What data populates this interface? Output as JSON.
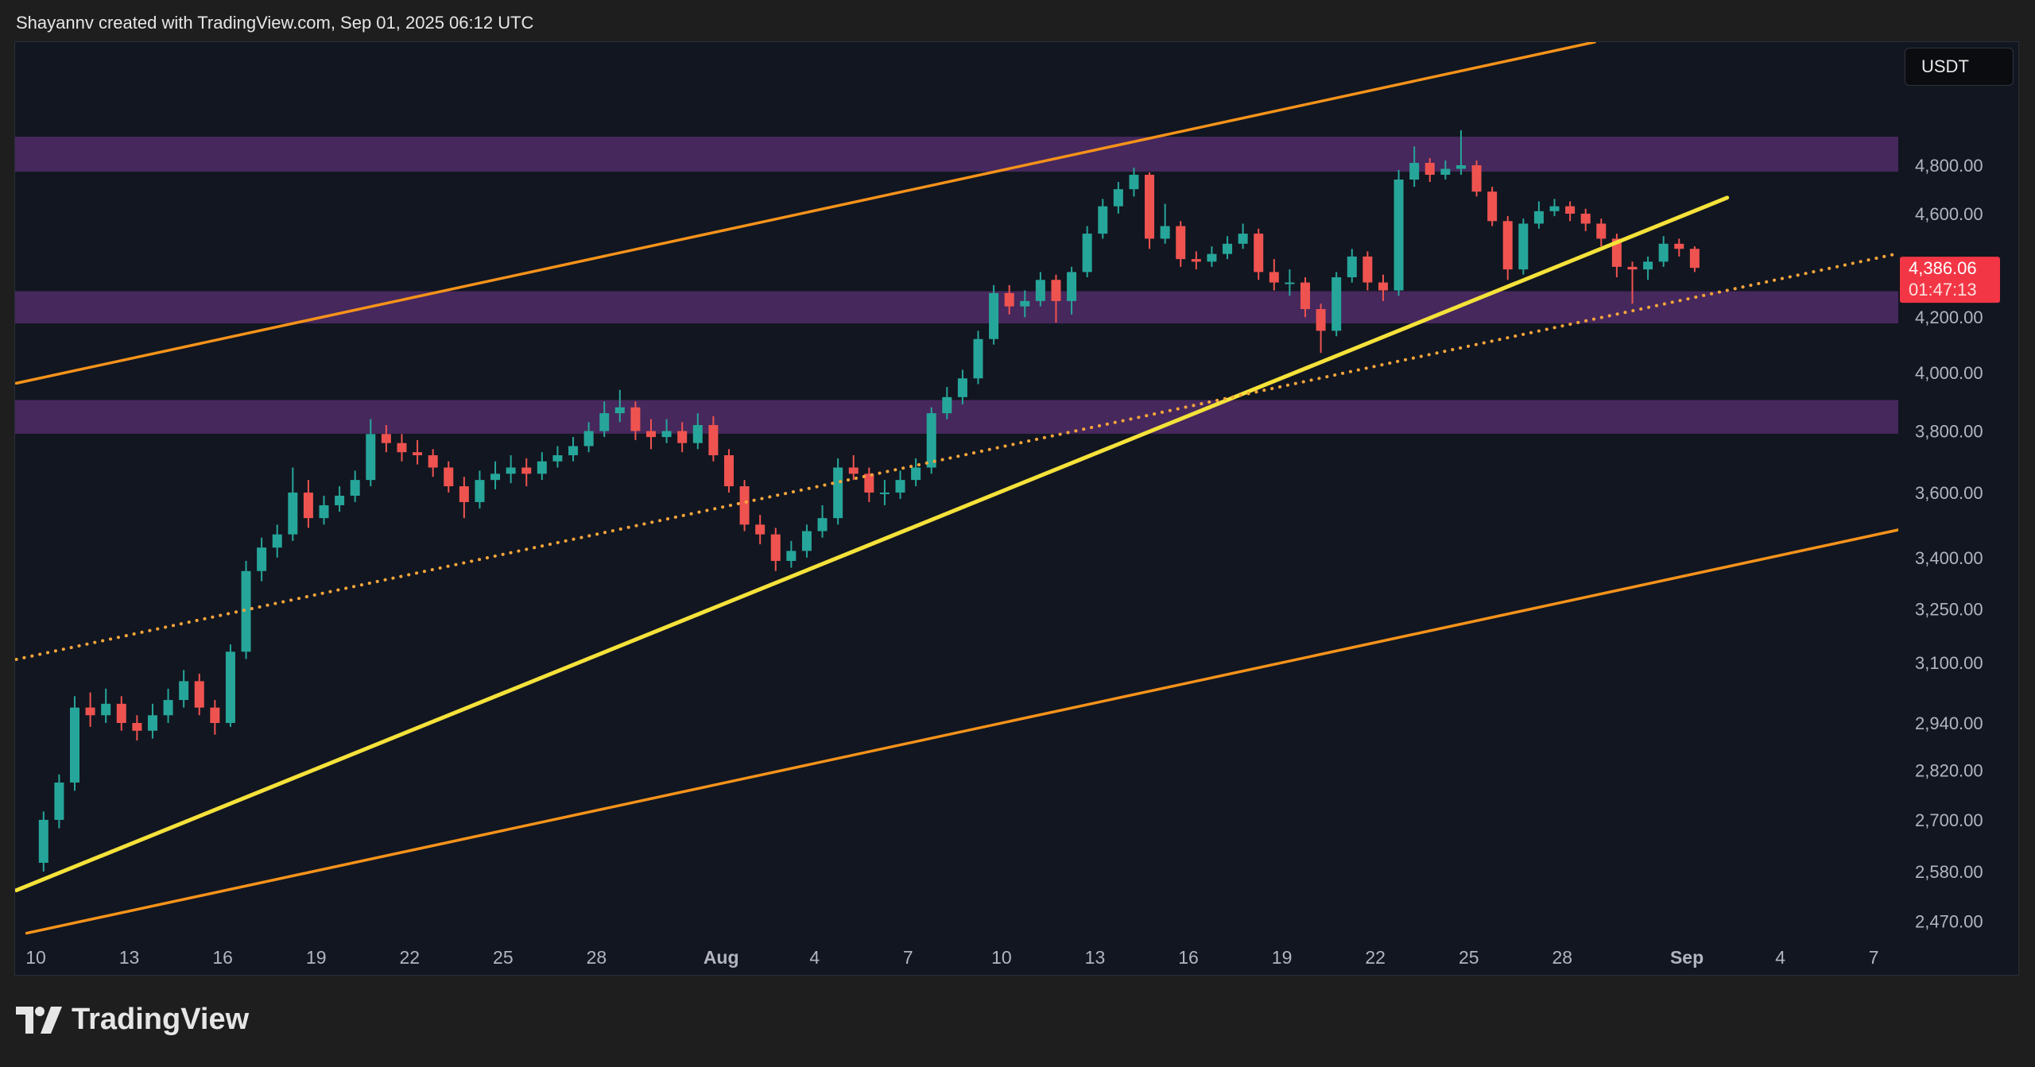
{
  "header": {
    "text": "Shayannv created with TradingView.com, Sep 01, 2025 06:12 UTC"
  },
  "currency_button": {
    "label": "USDT"
  },
  "logo": {
    "text": "TradingView"
  },
  "colors": {
    "up": "#26a69a",
    "down": "#ef5350",
    "zone": "#4b2a62",
    "channel": "#f7931a",
    "trend": "#f5e23a",
    "midline": "#f7a53a",
    "last_price_bg": "#f23645"
  },
  "chart_data": {
    "type": "candlestick",
    "y_scale": "log",
    "ylim": [
      2420,
      5400
    ],
    "xlim": [
      "2025-07-09T09",
      "2025-09-08T12"
    ],
    "grid": false,
    "y_ticks": [
      4800,
      4600,
      4200,
      4000,
      3800,
      3600,
      3400,
      3250,
      3100,
      2940,
      2820,
      2700,
      2580,
      2470
    ],
    "y_tick_labels": [
      "4,800.00",
      "4,600.00",
      "4,200.00",
      "4,000.00",
      "3,800.00",
      "3,600.00",
      "3,400.00",
      "3,250.00",
      "3,100.00",
      "2,940.00",
      "2,820.00",
      "2,700.00",
      "2,580.00",
      "2,470.00"
    ],
    "x_ticks": [
      {
        "date": "2025-07-10",
        "label": "10"
      },
      {
        "date": "2025-07-13",
        "label": "13"
      },
      {
        "date": "2025-07-16",
        "label": "16"
      },
      {
        "date": "2025-07-19",
        "label": "19"
      },
      {
        "date": "2025-07-22",
        "label": "22"
      },
      {
        "date": "2025-07-25",
        "label": "25"
      },
      {
        "date": "2025-07-28",
        "label": "28"
      },
      {
        "date": "2025-08-01",
        "label": "Aug",
        "bold": true
      },
      {
        "date": "2025-08-04",
        "label": "4"
      },
      {
        "date": "2025-08-07",
        "label": "7"
      },
      {
        "date": "2025-08-10",
        "label": "10"
      },
      {
        "date": "2025-08-13",
        "label": "13"
      },
      {
        "date": "2025-08-16",
        "label": "16"
      },
      {
        "date": "2025-08-19",
        "label": "19"
      },
      {
        "date": "2025-08-22",
        "label": "22"
      },
      {
        "date": "2025-08-25",
        "label": "25"
      },
      {
        "date": "2025-08-28",
        "label": "28"
      },
      {
        "date": "2025-09-01",
        "label": "Sep",
        "bold": true
      },
      {
        "date": "2025-09-04",
        "label": "4"
      },
      {
        "date": "2025-09-07",
        "label": "7"
      }
    ],
    "last_price": {
      "value": 4386.06,
      "label": "4,386.06",
      "countdown": "01:47:13"
    },
    "zones": [
      {
        "from": 4773,
        "to": 4922
      },
      {
        "from": 4177,
        "to": 4297
      },
      {
        "from": 3791,
        "to": 3905
      }
    ],
    "lines": [
      {
        "kind": "channel-upper",
        "style": "solid",
        "start": [
          "2025-07-09T09",
          3963
        ],
        "end": [
          "2025-08-29T01",
          5349
        ]
      },
      {
        "kind": "channel-lower",
        "style": "solid",
        "start": [
          "2025-07-09T17",
          2444
        ],
        "end": [
          "2025-09-07T19",
          3484
        ]
      },
      {
        "kind": "trendline",
        "style": "solid",
        "start": [
          "2025-07-09T09",
          2538
        ],
        "end": [
          "2025-09-02T07",
          4665
        ]
      },
      {
        "kind": "channel-mid",
        "style": "dotted",
        "start": [
          "2025-07-09T09",
          3109
        ],
        "end": [
          "2025-09-07T19",
          4442
        ]
      }
    ],
    "candles_columns": [
      "time",
      "open",
      "high",
      "low",
      "close"
    ],
    "candles": [
      [
        "2025-07-10T00",
        2600,
        2720,
        2580,
        2700
      ],
      [
        "2025-07-10T12",
        2700,
        2810,
        2680,
        2790
      ],
      [
        "2025-07-11T00",
        2790,
        3010,
        2770,
        2980
      ],
      [
        "2025-07-11T12",
        2980,
        3020,
        2930,
        2960
      ],
      [
        "2025-07-12T00",
        2960,
        3030,
        2940,
        2990
      ],
      [
        "2025-07-12T12",
        2990,
        3010,
        2920,
        2940
      ],
      [
        "2025-07-13T00",
        2940,
        2960,
        2895,
        2920
      ],
      [
        "2025-07-13T12",
        2920,
        2990,
        2900,
        2960
      ],
      [
        "2025-07-14T00",
        2960,
        3030,
        2940,
        3000
      ],
      [
        "2025-07-14T12",
        3000,
        3080,
        2980,
        3050
      ],
      [
        "2025-07-15T00",
        3050,
        3070,
        2960,
        2980
      ],
      [
        "2025-07-15T12",
        2980,
        3000,
        2910,
        2940
      ],
      [
        "2025-07-16T00",
        2940,
        3150,
        2930,
        3130
      ],
      [
        "2025-07-16T12",
        3130,
        3390,
        3110,
        3360
      ],
      [
        "2025-07-17T00",
        3360,
        3460,
        3330,
        3430
      ],
      [
        "2025-07-17T12",
        3430,
        3500,
        3400,
        3470
      ],
      [
        "2025-07-18T00",
        3470,
        3680,
        3450,
        3600
      ],
      [
        "2025-07-18T12",
        3600,
        3640,
        3490,
        3520
      ],
      [
        "2025-07-19T00",
        3520,
        3590,
        3500,
        3560
      ],
      [
        "2025-07-19T12",
        3560,
        3620,
        3540,
        3590
      ],
      [
        "2025-07-20T00",
        3590,
        3670,
        3570,
        3640
      ],
      [
        "2025-07-20T12",
        3640,
        3840,
        3620,
        3790
      ],
      [
        "2025-07-21T00",
        3790,
        3820,
        3730,
        3760
      ],
      [
        "2025-07-21T12",
        3760,
        3790,
        3700,
        3730
      ],
      [
        "2025-07-22T00",
        3730,
        3770,
        3690,
        3720
      ],
      [
        "2025-07-22T12",
        3720,
        3740,
        3650,
        3680
      ],
      [
        "2025-07-23T00",
        3680,
        3700,
        3600,
        3620
      ],
      [
        "2025-07-23T12",
        3620,
        3650,
        3520,
        3570
      ],
      [
        "2025-07-24T00",
        3570,
        3670,
        3550,
        3640
      ],
      [
        "2025-07-24T12",
        3640,
        3700,
        3610,
        3660
      ],
      [
        "2025-07-25T00",
        3660,
        3720,
        3630,
        3680
      ],
      [
        "2025-07-25T12",
        3680,
        3710,
        3620,
        3660
      ],
      [
        "2025-07-26T00",
        3660,
        3730,
        3640,
        3700
      ],
      [
        "2025-07-26T12",
        3700,
        3750,
        3680,
        3720
      ],
      [
        "2025-07-27T00",
        3720,
        3780,
        3700,
        3750
      ],
      [
        "2025-07-27T12",
        3750,
        3830,
        3730,
        3800
      ],
      [
        "2025-07-28T00",
        3800,
        3900,
        3780,
        3860
      ],
      [
        "2025-07-28T12",
        3860,
        3940,
        3830,
        3880
      ],
      [
        "2025-07-29T00",
        3880,
        3900,
        3770,
        3800
      ],
      [
        "2025-07-29T12",
        3800,
        3840,
        3740,
        3780
      ],
      [
        "2025-07-30T00",
        3780,
        3840,
        3760,
        3800
      ],
      [
        "2025-07-30T12",
        3800,
        3830,
        3730,
        3760
      ],
      [
        "2025-07-31T00",
        3760,
        3860,
        3740,
        3820
      ],
      [
        "2025-07-31T12",
        3820,
        3850,
        3700,
        3720
      ],
      [
        "2025-08-01T00",
        3720,
        3740,
        3600,
        3620
      ],
      [
        "2025-08-01T12",
        3620,
        3640,
        3480,
        3500
      ],
      [
        "2025-08-02T00",
        3500,
        3530,
        3440,
        3470
      ],
      [
        "2025-08-02T12",
        3470,
        3490,
        3360,
        3390
      ],
      [
        "2025-08-03T00",
        3390,
        3450,
        3370,
        3420
      ],
      [
        "2025-08-03T12",
        3420,
        3500,
        3400,
        3480
      ],
      [
        "2025-08-04T00",
        3480,
        3560,
        3460,
        3520
      ],
      [
        "2025-08-04T12",
        3520,
        3710,
        3500,
        3680
      ],
      [
        "2025-08-05T00",
        3680,
        3720,
        3640,
        3660
      ],
      [
        "2025-08-05T12",
        3660,
        3680,
        3570,
        3600
      ],
      [
        "2025-08-06T00",
        3600,
        3640,
        3560,
        3600
      ],
      [
        "2025-08-06T12",
        3600,
        3670,
        3580,
        3640
      ],
      [
        "2025-08-07T00",
        3640,
        3710,
        3620,
        3680
      ],
      [
        "2025-08-07T12",
        3680,
        3880,
        3660,
        3860
      ],
      [
        "2025-08-08T00",
        3860,
        3950,
        3840,
        3915
      ],
      [
        "2025-08-08T12",
        3915,
        4010,
        3890,
        3980
      ],
      [
        "2025-08-09T00",
        3980,
        4150,
        3960,
        4120
      ],
      [
        "2025-08-09T12",
        4120,
        4320,
        4100,
        4290
      ],
      [
        "2025-08-10T00",
        4290,
        4320,
        4210,
        4240
      ],
      [
        "2025-08-10T12",
        4240,
        4300,
        4200,
        4260
      ],
      [
        "2025-08-11T00",
        4260,
        4370,
        4240,
        4340
      ],
      [
        "2025-08-11T12",
        4340,
        4360,
        4180,
        4260
      ],
      [
        "2025-08-12T00",
        4260,
        4390,
        4210,
        4370
      ],
      [
        "2025-08-12T12",
        4370,
        4550,
        4350,
        4520
      ],
      [
        "2025-08-13T00",
        4520,
        4660,
        4500,
        4630
      ],
      [
        "2025-08-13T12",
        4630,
        4730,
        4600,
        4700
      ],
      [
        "2025-08-14T00",
        4700,
        4790,
        4670,
        4760
      ],
      [
        "2025-08-14T12",
        4760,
        4770,
        4460,
        4500
      ],
      [
        "2025-08-15T00",
        4500,
        4640,
        4480,
        4550
      ],
      [
        "2025-08-15T12",
        4550,
        4570,
        4390,
        4420
      ],
      [
        "2025-08-16T00",
        4420,
        4450,
        4380,
        4410
      ],
      [
        "2025-08-16T12",
        4410,
        4470,
        4390,
        4440
      ],
      [
        "2025-08-17T00",
        4440,
        4510,
        4420,
        4480
      ],
      [
        "2025-08-17T12",
        4480,
        4560,
        4460,
        4520
      ],
      [
        "2025-08-18T00",
        4520,
        4540,
        4340,
        4370
      ],
      [
        "2025-08-18T12",
        4370,
        4420,
        4300,
        4330
      ],
      [
        "2025-08-19T00",
        4330,
        4380,
        4280,
        4330
      ],
      [
        "2025-08-19T12",
        4330,
        4350,
        4200,
        4230
      ],
      [
        "2025-08-20T00",
        4230,
        4250,
        4070,
        4150
      ],
      [
        "2025-08-20T12",
        4150,
        4370,
        4130,
        4350
      ],
      [
        "2025-08-21T00",
        4350,
        4460,
        4330,
        4430
      ],
      [
        "2025-08-21T12",
        4430,
        4450,
        4300,
        4330
      ],
      [
        "2025-08-22T00",
        4330,
        4360,
        4260,
        4300
      ],
      [
        "2025-08-22T12",
        4300,
        4780,
        4280,
        4740
      ],
      [
        "2025-08-23T00",
        4740,
        4880,
        4710,
        4810
      ],
      [
        "2025-08-23T12",
        4810,
        4830,
        4730,
        4760
      ],
      [
        "2025-08-24T00",
        4760,
        4820,
        4740,
        4785
      ],
      [
        "2025-08-24T12",
        4785,
        4950,
        4760,
        4800
      ],
      [
        "2025-08-25T00",
        4800,
        4820,
        4670,
        4690
      ],
      [
        "2025-08-25T12",
        4690,
        4710,
        4550,
        4570
      ],
      [
        "2025-08-26T00",
        4570,
        4590,
        4340,
        4380
      ],
      [
        "2025-08-26T12",
        4380,
        4580,
        4360,
        4560
      ],
      [
        "2025-08-27T00",
        4560,
        4650,
        4540,
        4610
      ],
      [
        "2025-08-27T12",
        4610,
        4660,
        4590,
        4630
      ],
      [
        "2025-08-28T00",
        4630,
        4650,
        4570,
        4600
      ],
      [
        "2025-08-28T12",
        4600,
        4620,
        4530,
        4560
      ],
      [
        "2025-08-29T00",
        4560,
        4580,
        4470,
        4500
      ],
      [
        "2025-08-29T12",
        4500,
        4520,
        4350,
        4390
      ],
      [
        "2025-08-30T00",
        4390,
        4410,
        4250,
        4380
      ],
      [
        "2025-08-30T12",
        4380,
        4430,
        4340,
        4410
      ],
      [
        "2025-08-31T00",
        4410,
        4510,
        4390,
        4480
      ],
      [
        "2025-08-31T12",
        4480,
        4500,
        4430,
        4460
      ],
      [
        "2025-09-01T00",
        4460,
        4470,
        4370,
        4386.06
      ]
    ]
  }
}
